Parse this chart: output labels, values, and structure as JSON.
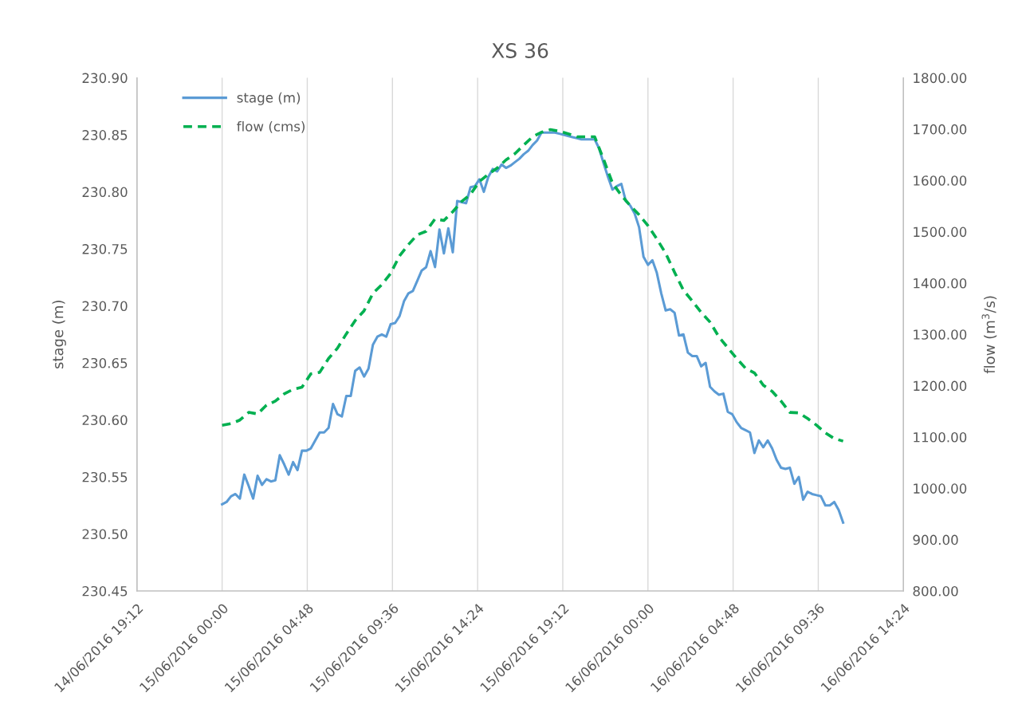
{
  "chart_data": {
    "type": "line",
    "title": "XS 36",
    "ylabel": "stage (m)",
    "y2label": "flow (m$^{3}$/s)",
    "xlim": [
      "2016-06-14T19:12",
      "2016-06-16T14:24"
    ],
    "xticks": [
      {
        "value": "2016-06-14T19:12",
        "label": "14/06/2016 19:12"
      },
      {
        "value": "2016-06-15T00:00",
        "label": "15/06/2016 00:00"
      },
      {
        "value": "2016-06-15T04:48",
        "label": "15/06/2016 04:48"
      },
      {
        "value": "2016-06-15T09:36",
        "label": "15/06/2016 09:36"
      },
      {
        "value": "2016-06-15T14:24",
        "label": "15/06/2016 14:24"
      },
      {
        "value": "2016-06-15T19:12",
        "label": "15/06/2016 19:12"
      },
      {
        "value": "2016-06-16T00:00",
        "label": "16/06/2016 00:00"
      },
      {
        "value": "2016-06-16T04:48",
        "label": "16/06/2016 04:48"
      },
      {
        "value": "2016-06-16T09:36",
        "label": "16/06/2016 09:36"
      },
      {
        "value": "2016-06-16T14:24",
        "label": "16/06/2016 14:24"
      }
    ],
    "ylim": [
      230.45,
      230.9
    ],
    "yticks": [
      {
        "value": 230.45,
        "label": "230.45"
      },
      {
        "value": 230.5,
        "label": "230.50"
      },
      {
        "value": 230.55,
        "label": "230.55"
      },
      {
        "value": 230.6,
        "label": "230.60"
      },
      {
        "value": 230.65,
        "label": "230.65"
      },
      {
        "value": 230.7,
        "label": "230.70"
      },
      {
        "value": 230.75,
        "label": "230.75"
      },
      {
        "value": 230.8,
        "label": "230.80"
      },
      {
        "value": 230.85,
        "label": "230.85"
      },
      {
        "value": 230.9,
        "label": "230.90"
      }
    ],
    "y2lim": [
      800,
      1800
    ],
    "y2ticks": [
      {
        "value": 800,
        "label": "800.00"
      },
      {
        "value": 900,
        "label": "900.00"
      },
      {
        "value": 1000,
        "label": "1000.00"
      },
      {
        "value": 1100,
        "label": "1100.00"
      },
      {
        "value": 1200,
        "label": "1200.00"
      },
      {
        "value": 1300,
        "label": "1300.00"
      },
      {
        "value": 1400,
        "label": "1400.00"
      },
      {
        "value": 1500,
        "label": "1500.00"
      },
      {
        "value": 1600,
        "label": "1600.00"
      },
      {
        "value": 1700,
        "label": "1700.00"
      },
      {
        "value": 1800,
        "label": "1800.00"
      }
    ],
    "grid": "x",
    "legend": "top left",
    "marker": "none",
    "series": [
      {
        "name": "stage (m)",
        "color": "#5b9bd5",
        "line_style": "solid",
        "x": [
          "2016-06-15T00:00",
          "2016-06-15T00:15",
          "2016-06-15T00:30",
          "2016-06-15T00:45",
          "2016-06-15T01:00",
          "2016-06-15T01:15",
          "2016-06-15T01:30",
          "2016-06-15T01:45",
          "2016-06-15T02:00",
          "2016-06-15T02:15",
          "2016-06-15T02:30",
          "2016-06-15T02:45",
          "2016-06-15T03:00",
          "2016-06-15T03:15",
          "2016-06-15T03:30",
          "2016-06-15T03:45",
          "2016-06-15T04:00",
          "2016-06-15T04:15",
          "2016-06-15T04:30",
          "2016-06-15T04:45",
          "2016-06-15T05:00",
          "2016-06-15T05:15",
          "2016-06-15T05:30",
          "2016-06-15T05:45",
          "2016-06-15T06:00",
          "2016-06-15T06:15",
          "2016-06-15T06:30",
          "2016-06-15T06:45",
          "2016-06-15T07:00",
          "2016-06-15T07:15",
          "2016-06-15T07:30",
          "2016-06-15T07:45",
          "2016-06-15T08:00",
          "2016-06-15T08:15",
          "2016-06-15T08:30",
          "2016-06-15T08:45",
          "2016-06-15T09:00",
          "2016-06-15T09:15",
          "2016-06-15T09:30",
          "2016-06-15T09:45",
          "2016-06-15T10:00",
          "2016-06-15T10:15",
          "2016-06-15T10:30",
          "2016-06-15T10:45",
          "2016-06-15T11:00",
          "2016-06-15T11:15",
          "2016-06-15T11:30",
          "2016-06-15T11:45",
          "2016-06-15T12:00",
          "2016-06-15T12:15",
          "2016-06-15T12:30",
          "2016-06-15T12:45",
          "2016-06-15T13:00",
          "2016-06-15T13:15",
          "2016-06-15T13:30",
          "2016-06-15T13:45",
          "2016-06-15T14:00",
          "2016-06-15T14:15",
          "2016-06-15T14:30",
          "2016-06-15T14:45",
          "2016-06-15T15:00",
          "2016-06-15T15:15",
          "2016-06-15T15:30",
          "2016-06-15T15:45",
          "2016-06-15T16:00",
          "2016-06-15T16:15",
          "2016-06-15T16:30",
          "2016-06-15T16:45",
          "2016-06-15T17:00",
          "2016-06-15T17:15",
          "2016-06-15T17:30",
          "2016-06-15T17:45",
          "2016-06-15T18:00",
          "2016-06-15T18:15",
          "2016-06-15T18:30",
          "2016-06-15T18:45",
          "2016-06-15T19:00",
          "2016-06-15T19:15",
          "2016-06-15T19:30",
          "2016-06-15T19:45",
          "2016-06-15T20:00",
          "2016-06-15T20:15",
          "2016-06-15T20:30",
          "2016-06-15T20:45",
          "2016-06-15T21:00",
          "2016-06-15T21:15",
          "2016-06-15T21:30",
          "2016-06-15T21:45",
          "2016-06-15T22:00",
          "2016-06-15T22:15",
          "2016-06-15T22:30",
          "2016-06-15T22:45",
          "2016-06-15T23:00",
          "2016-06-15T23:15",
          "2016-06-15T23:30",
          "2016-06-15T23:45",
          "2016-06-16T00:00",
          "2016-06-16T00:15",
          "2016-06-16T00:30",
          "2016-06-16T00:45",
          "2016-06-16T01:00",
          "2016-06-16T01:15",
          "2016-06-16T01:30",
          "2016-06-16T01:45",
          "2016-06-16T02:00",
          "2016-06-16T02:15",
          "2016-06-16T02:30",
          "2016-06-16T02:45",
          "2016-06-16T03:00",
          "2016-06-16T03:15",
          "2016-06-16T03:30",
          "2016-06-16T03:45",
          "2016-06-16T04:00",
          "2016-06-16T04:15",
          "2016-06-16T04:30",
          "2016-06-16T04:45",
          "2016-06-16T05:00",
          "2016-06-16T05:15",
          "2016-06-16T05:30",
          "2016-06-16T05:45",
          "2016-06-16T06:00",
          "2016-06-16T06:15",
          "2016-06-16T06:30",
          "2016-06-16T06:45",
          "2016-06-16T07:00",
          "2016-06-16T07:15",
          "2016-06-16T07:30",
          "2016-06-16T07:45",
          "2016-06-16T08:00",
          "2016-06-16T08:15",
          "2016-06-16T08:30",
          "2016-06-16T08:45",
          "2016-06-16T09:00",
          "2016-06-16T09:15",
          "2016-06-16T09:30",
          "2016-06-16T09:45",
          "2016-06-16T10:00",
          "2016-06-16T10:15",
          "2016-06-16T10:30",
          "2016-06-16T10:45",
          "2016-06-16T11:00"
        ],
        "values": [
          230.526,
          230.528,
          230.533,
          230.535,
          230.531,
          230.552,
          230.542,
          230.531,
          230.551,
          230.543,
          230.548,
          230.546,
          230.547,
          230.569,
          230.561,
          230.552,
          230.563,
          230.556,
          230.573,
          230.573,
          230.575,
          230.582,
          230.589,
          230.589,
          230.593,
          230.614,
          230.605,
          230.603,
          230.621,
          230.621,
          230.643,
          230.646,
          230.638,
          230.645,
          230.666,
          230.673,
          230.675,
          230.673,
          230.684,
          230.685,
          230.691,
          230.704,
          230.711,
          230.713,
          230.722,
          230.731,
          230.734,
          230.748,
          230.734,
          230.767,
          230.746,
          230.768,
          230.747,
          230.792,
          230.791,
          230.79,
          230.804,
          230.805,
          230.811,
          230.8,
          230.813,
          230.82,
          230.818,
          230.824,
          230.821,
          230.823,
          230.826,
          230.829,
          230.833,
          230.836,
          230.841,
          230.845,
          230.852,
          230.852,
          230.852,
          230.852,
          230.851,
          230.85,
          230.849,
          230.848,
          230.847,
          230.846,
          230.846,
          230.846,
          230.846,
          230.838,
          230.825,
          230.813,
          230.802,
          230.805,
          230.807,
          230.792,
          230.788,
          230.781,
          230.769,
          230.743,
          230.736,
          230.74,
          230.729,
          230.711,
          230.696,
          230.697,
          230.694,
          230.674,
          230.675,
          230.659,
          230.656,
          230.656,
          230.647,
          230.65,
          230.629,
          230.625,
          230.622,
          230.623,
          230.607,
          230.605,
          230.598,
          230.593,
          230.591,
          230.589,
          230.571,
          230.582,
          230.576,
          230.582,
          230.575,
          230.565,
          230.558,
          230.557,
          230.558,
          230.544,
          230.55,
          230.53,
          230.537,
          230.535,
          230.534,
          230.533,
          230.525,
          230.525,
          230.528,
          230.521,
          230.51
        ]
      },
      {
        "name": "flow (cms)",
        "color": "#00b050",
        "line_style": "dashed",
        "axis": "y2",
        "x": [
          "2016-06-15T00:00",
          "2016-06-15T00:30",
          "2016-06-15T01:00",
          "2016-06-15T01:30",
          "2016-06-15T02:00",
          "2016-06-15T02:30",
          "2016-06-15T03:00",
          "2016-06-15T03:30",
          "2016-06-15T04:00",
          "2016-06-15T04:30",
          "2016-06-15T05:00",
          "2016-06-15T05:30",
          "2016-06-15T06:00",
          "2016-06-15T06:30",
          "2016-06-15T07:00",
          "2016-06-15T07:30",
          "2016-06-15T08:00",
          "2016-06-15T08:30",
          "2016-06-15T09:00",
          "2016-06-15T09:30",
          "2016-06-15T10:00",
          "2016-06-15T10:30",
          "2016-06-15T11:00",
          "2016-06-15T11:30",
          "2016-06-15T12:00",
          "2016-06-15T12:30",
          "2016-06-15T13:00",
          "2016-06-15T13:30",
          "2016-06-15T14:00",
          "2016-06-15T14:30",
          "2016-06-15T15:00",
          "2016-06-15T15:30",
          "2016-06-15T16:00",
          "2016-06-15T16:30",
          "2016-06-15T17:00",
          "2016-06-15T17:30",
          "2016-06-15T18:00",
          "2016-06-15T18:30",
          "2016-06-15T19:00",
          "2016-06-15T19:30",
          "2016-06-15T20:00",
          "2016-06-15T20:30",
          "2016-06-15T21:00",
          "2016-06-15T21:30",
          "2016-06-15T22:00",
          "2016-06-15T22:30",
          "2016-06-15T23:00",
          "2016-06-15T23:30",
          "2016-06-16T00:00",
          "2016-06-16T00:30",
          "2016-06-16T01:00",
          "2016-06-16T01:30",
          "2016-06-16T02:00",
          "2016-06-16T02:30",
          "2016-06-16T03:00",
          "2016-06-16T03:30",
          "2016-06-16T04:00",
          "2016-06-16T04:30",
          "2016-06-16T05:00",
          "2016-06-16T05:30",
          "2016-06-16T06:00",
          "2016-06-16T06:30",
          "2016-06-16T07:00",
          "2016-06-16T07:30",
          "2016-06-16T08:00",
          "2016-06-16T08:30",
          "2016-06-16T09:00",
          "2016-06-16T09:30",
          "2016-06-16T10:00",
          "2016-06-16T10:30",
          "2016-06-16T11:00"
        ],
        "values": [
          1123,
          1126,
          1133,
          1148,
          1145,
          1162,
          1170,
          1184,
          1193,
          1197,
          1223,
          1226,
          1253,
          1273,
          1301,
          1327,
          1346,
          1380,
          1397,
          1419,
          1453,
          1475,
          1494,
          1501,
          1525,
          1522,
          1539,
          1559,
          1573,
          1598,
          1612,
          1624,
          1640,
          1652,
          1669,
          1685,
          1694,
          1699,
          1696,
          1691,
          1685,
          1685,
          1685,
          1641,
          1595,
          1571,
          1551,
          1533,
          1512,
          1486,
          1458,
          1421,
          1386,
          1365,
          1343,
          1324,
          1295,
          1274,
          1253,
          1234,
          1225,
          1201,
          1189,
          1170,
          1148,
          1147,
          1136,
          1123,
          1108,
          1097,
          1092
        ]
      }
    ]
  }
}
